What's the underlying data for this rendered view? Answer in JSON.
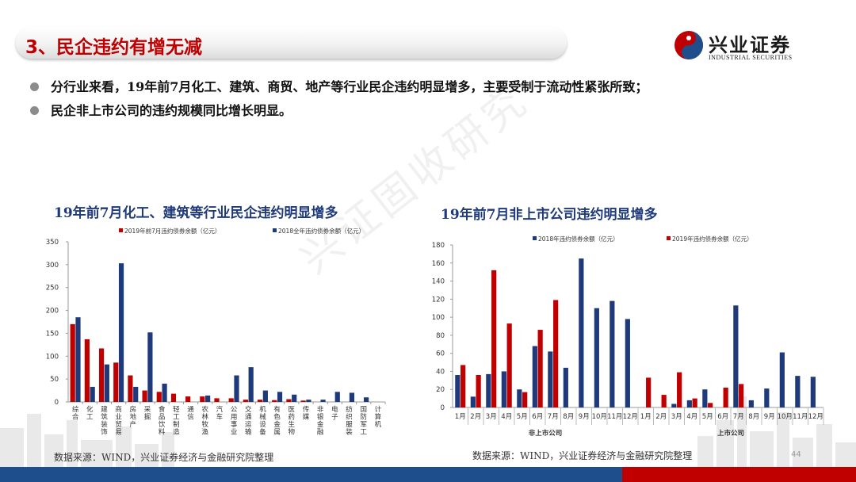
{
  "header": {
    "title": "3、民企违约有增无减"
  },
  "logo": {
    "cn": "兴业证券",
    "en": "INDUSTRIAL SECURITIES"
  },
  "bullets": [
    "分行业来看，19年前7月化工、建筑、商贸、地产等行业民企违约明显增多，主要受制于流动性紧张所致；",
    "民企非上市公司的违约规模同比增长明显。"
  ],
  "watermark": "兴证固收研究",
  "page_number": "44",
  "colors": {
    "red": "#c00000",
    "blue": "#1f3a7a",
    "title_red": "#c00000",
    "footer_blue": "#1f4e8c"
  },
  "chart_data": [
    {
      "type": "bar",
      "title": "19年前7月化工、建筑等行业民企违约明显增多",
      "legend_position": "top",
      "ylim": [
        0,
        350
      ],
      "yticks": [
        0,
        50,
        100,
        150,
        200,
        250,
        300,
        350
      ],
      "categories": [
        "综合",
        "化工",
        "建筑装饰",
        "商业贸易",
        "房地产",
        "采掘",
        "食品饮料",
        "轻工制造",
        "通信",
        "农林牧渔",
        "汽车",
        "公用事业",
        "交通运输",
        "机械设备",
        "有色金属",
        "医药生物",
        "传媒",
        "非银金融",
        "电子",
        "纺织服装",
        "国防军工",
        "计算机"
      ],
      "series": [
        {
          "name": "2019年前7月违约债券余额（亿元）",
          "color": "#c00000",
          "values": [
            170,
            137,
            117,
            86,
            58,
            25,
            22,
            18,
            12,
            12,
            8,
            8,
            5,
            5,
            4,
            6,
            3,
            0,
            0,
            0,
            0,
            0
          ]
        },
        {
          "name": "2018全年违约债券余额（亿元）",
          "color": "#1f3a7a",
          "values": [
            185,
            33,
            82,
            303,
            33,
            152,
            40,
            0,
            0,
            14,
            0,
            58,
            76,
            25,
            22,
            16,
            5,
            5,
            22,
            20,
            10,
            0
          ]
        }
      ],
      "source": "数据来源：WIND，兴业证券经济与金融研究院整理"
    },
    {
      "type": "bar",
      "title": "19年前7月非上市公司违约明显增多",
      "legend_position": "top",
      "ylim": [
        0,
        180
      ],
      "yticks": [
        0,
        20,
        40,
        60,
        80,
        100,
        120,
        140,
        160,
        180
      ],
      "categories": [
        "1月",
        "2月",
        "3月",
        "4月",
        "5月",
        "6月",
        "7月",
        "8月",
        "9月",
        "10月",
        "11月",
        "12月",
        "1月",
        "2月",
        "3月",
        "4月",
        "5月",
        "6月",
        "7月",
        "8月",
        "9月",
        "10月",
        "11月",
        "12月"
      ],
      "groups": [
        {
          "label": "非上市公司",
          "span": 12
        },
        {
          "label": "上市公司",
          "span": 12
        }
      ],
      "series": [
        {
          "name": "2018年违约债券余额（亿元）",
          "color": "#1f3a7a",
          "values": [
            36,
            12,
            37,
            40,
            20,
            68,
            62,
            44,
            165,
            110,
            118,
            98,
            0,
            0,
            4,
            8,
            20,
            0,
            113,
            8,
            21,
            61,
            35,
            34
          ]
        },
        {
          "name": "2019年违约债券余额（亿元）",
          "color": "#c00000",
          "values": [
            47,
            36,
            152,
            93,
            17,
            86,
            119,
            0,
            0,
            0,
            0,
            0,
            33,
            14,
            39,
            10,
            5,
            22,
            26,
            0,
            0,
            0,
            0,
            0
          ]
        }
      ],
      "source": "数据来源：WIND，兴业证券经济与金融研究院整理"
    }
  ]
}
